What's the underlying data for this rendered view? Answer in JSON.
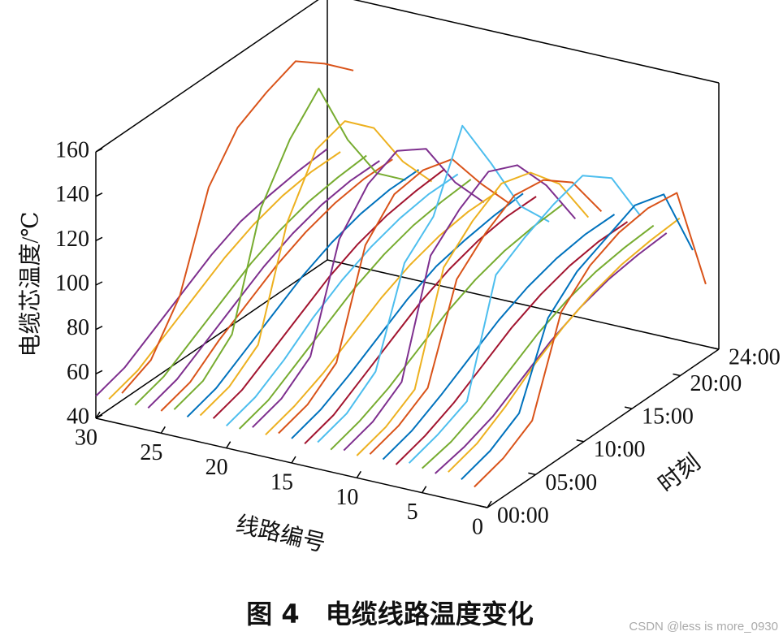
{
  "chart_data": {
    "type": "waterfall3d",
    "caption": "图 4　电缆线路温度变化",
    "watermark": "CSDN @less is more_0930",
    "zlabel": "电缆芯温度/℃",
    "ylabel": "线路编号",
    "xlabel": "时刻",
    "xlim": [
      0,
      24
    ],
    "xticks": [
      {
        "value": 0,
        "label": "00:00"
      },
      {
        "value": 5,
        "label": "05:00"
      },
      {
        "value": 10,
        "label": "10:00"
      },
      {
        "value": 15,
        "label": "15:00"
      },
      {
        "value": 20,
        "label": "20:00"
      },
      {
        "value": 24,
        "label": "24:00"
      }
    ],
    "ylim": [
      0,
      30
    ],
    "yticks": [
      0,
      5,
      10,
      15,
      20,
      25,
      30
    ],
    "zlim": [
      40,
      160
    ],
    "zticks": [
      40,
      60,
      80,
      100,
      120,
      140,
      160
    ],
    "x": [
      0,
      3,
      6,
      9,
      12,
      15,
      18,
      21,
      24
    ],
    "series": [
      {
        "line": 1,
        "color": "#D95319",
        "values": [
          48,
          52,
          60,
          100,
          112,
          118,
          120,
          118,
          68
        ]
      },
      {
        "line": 2,
        "color": "#0072BD",
        "values": [
          50,
          54,
          62,
          96,
          108,
          114,
          120,
          116,
          82
        ]
      },
      {
        "line": 3,
        "color": "#EDB120",
        "values": [
          52,
          56,
          64,
          74,
          82,
          88,
          92,
          94,
          95
        ]
      },
      {
        "line": 4,
        "color": "#7E2F8E",
        "values": [
          50,
          53,
          58,
          66,
          74,
          80,
          84,
          86,
          87
        ]
      },
      {
        "line": 5,
        "color": "#77AC30",
        "values": [
          51,
          54,
          60,
          68,
          76,
          82,
          86,
          88,
          89
        ]
      },
      {
        "line": 6,
        "color": "#4DBEEE",
        "values": [
          52,
          56,
          62,
          110,
          118,
          124,
          128,
          118,
          92
        ]
      },
      {
        "line": 7,
        "color": "#A2142F",
        "values": [
          50,
          54,
          60,
          68,
          76,
          82,
          86,
          88,
          88
        ]
      },
      {
        "line": 8,
        "color": "#0072BD",
        "values": [
          51,
          55,
          62,
          70,
          78,
          84,
          88,
          90,
          90
        ]
      },
      {
        "line": 9,
        "color": "#D95319",
        "values": [
          52,
          56,
          64,
          104,
          116,
          124,
          122,
          112,
          90
        ]
      },
      {
        "line": 10,
        "color": "#EDB120",
        "values": [
          50,
          54,
          62,
          108,
          120,
          128,
          124,
          110,
          86
        ]
      },
      {
        "line": 11,
        "color": "#7E2F8E",
        "values": [
          51,
          55,
          64,
          112,
          124,
          132,
          126,
          108,
          84
        ]
      },
      {
        "line": 12,
        "color": "#77AC30",
        "values": [
          50,
          54,
          60,
          68,
          76,
          82,
          86,
          88,
          89
        ]
      },
      {
        "line": 13,
        "color": "#4DBEEE",
        "values": [
          52,
          56,
          66,
          106,
          118,
          150,
          124,
          96,
          80
        ]
      },
      {
        "line": 14,
        "color": "#A2142F",
        "values": [
          50,
          54,
          62,
          70,
          78,
          84,
          88,
          90,
          90
        ]
      },
      {
        "line": 15,
        "color": "#0072BD",
        "values": [
          51,
          55,
          62,
          70,
          78,
          84,
          87,
          89,
          90
        ]
      },
      {
        "line": 16,
        "color": "#D95319",
        "values": [
          52,
          56,
          66,
          110,
          124,
          126,
          122,
          102,
          84
        ]
      },
      {
        "line": 17,
        "color": "#EDB120",
        "values": [
          50,
          54,
          60,
          68,
          76,
          82,
          86,
          88,
          88
        ]
      },
      {
        "line": 18,
        "color": "#7E2F8E",
        "values": [
          52,
          56,
          66,
          110,
          126,
          132,
          124,
          100,
          82
        ]
      },
      {
        "line": 19,
        "color": "#77AC30",
        "values": [
          50,
          54,
          62,
          70,
          78,
          84,
          88,
          90,
          91
        ]
      },
      {
        "line": 20,
        "color": "#4DBEEE",
        "values": [
          50,
          54,
          62,
          72,
          80,
          86,
          90,
          92,
          92
        ]
      },
      {
        "line": 21,
        "color": "#A2142F",
        "values": [
          52,
          56,
          64,
          72,
          80,
          86,
          90,
          92,
          93
        ]
      },
      {
        "line": 22,
        "color": "#EDB120",
        "values": [
          52,
          56,
          66,
          112,
          136,
          140,
          128,
          104,
          86
        ]
      },
      {
        "line": 23,
        "color": "#0072BD",
        "values": [
          50,
          54,
          62,
          70,
          78,
          84,
          88,
          90,
          90
        ]
      },
      {
        "line": 24,
        "color": "#77AC30",
        "values": [
          52,
          56,
          68,
          116,
          138,
          152,
          120,
          96,
          84
        ]
      },
      {
        "line": 25,
        "color": "#D95319",
        "values": [
          50,
          54,
          64,
          72,
          80,
          86,
          90,
          92,
          92
        ]
      },
      {
        "line": 26,
        "color": "#7E2F8E",
        "values": [
          50,
          54,
          62,
          70,
          78,
          84,
          88,
          90,
          90
        ]
      },
      {
        "line": 27,
        "color": "#77AC30",
        "values": [
          50,
          54,
          62,
          70,
          78,
          84,
          88,
          90,
          91
        ]
      },
      {
        "line": 28,
        "color": "#D95319",
        "values": [
          54,
          60,
          80,
          120,
          138,
          145,
          150,
          140,
          128
        ]
      },
      {
        "line": 29,
        "color": "#EDB120",
        "values": [
          50,
          54,
          62,
          70,
          78,
          84,
          88,
          90,
          90
        ]
      },
      {
        "line": 30,
        "color": "#7E2F8E",
        "values": [
          50,
          54,
          62,
          70,
          78,
          84,
          87,
          89,
          90
        ]
      }
    ]
  }
}
